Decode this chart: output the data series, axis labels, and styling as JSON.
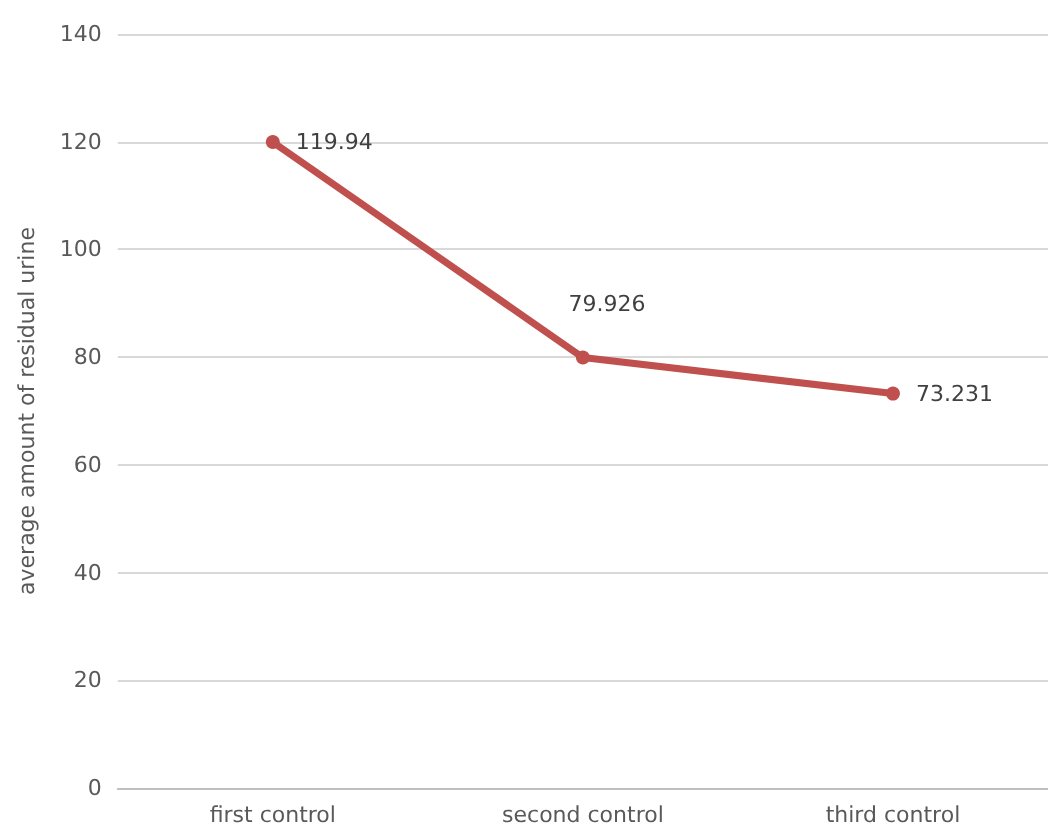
{
  "chart_data": {
    "type": "line",
    "ylabel": "average amount of residual urine",
    "categories": [
      "first control",
      "second control",
      "third control"
    ],
    "series": [
      {
        "color": "#c0504d",
        "values": [
          119.94,
          79.926,
          73.231
        ]
      }
    ],
    "ylim": [
      0,
      140
    ],
    "yticks": [
      0,
      20,
      40,
      60,
      80,
      100,
      120,
      140
    ],
    "grid": "y",
    "marker": "circle",
    "line_style": "solid",
    "data_labels": true
  }
}
